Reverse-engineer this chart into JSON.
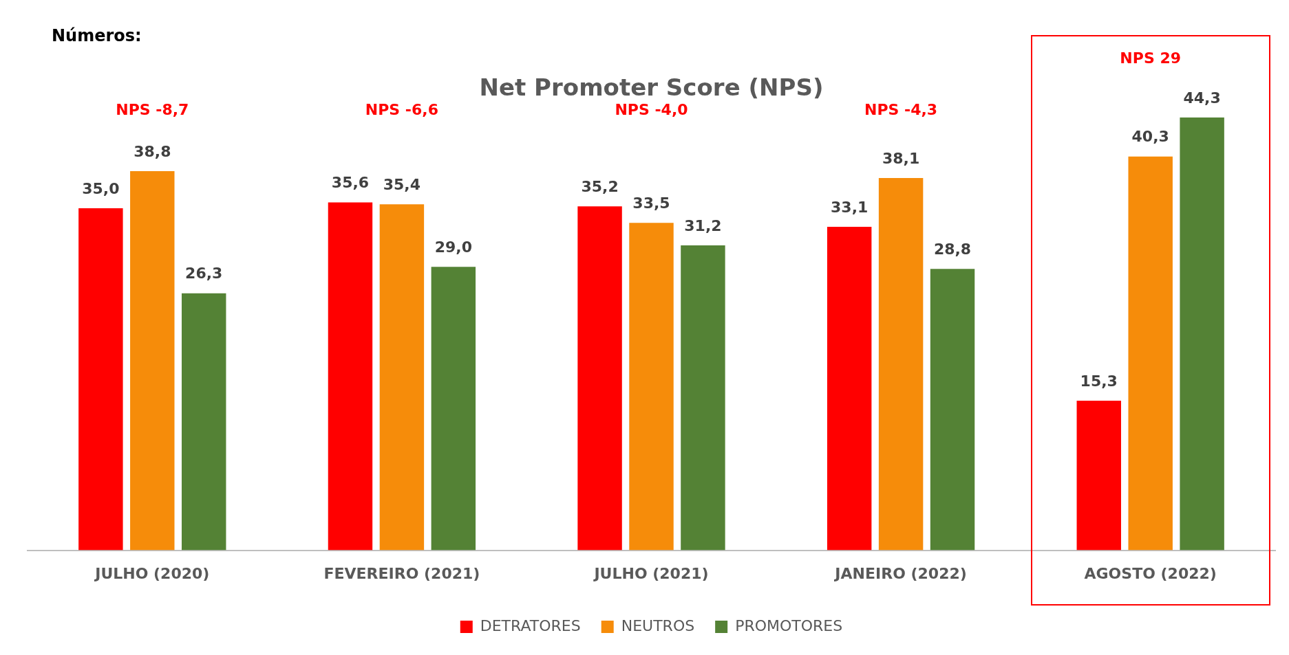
{
  "chart_data": {
    "type": "bar",
    "title": "Net Promoter Score (NPS)",
    "categories": [
      "JULHO (2020)",
      "FEVEREIRO (2021)",
      "JULHO (2021)",
      "JANEIRO (2022)",
      "AGOSTO (2022)"
    ],
    "series": [
      {
        "name": "DETRATORES",
        "color": "#ff0000",
        "values": [
          35.0,
          35.6,
          35.2,
          33.1,
          15.3
        ],
        "value_labels": [
          "35,0",
          "35,6",
          "35,2",
          "33,1",
          "15,3"
        ]
      },
      {
        "name": "NEUTROS",
        "color": "#f68c0a",
        "values": [
          38.8,
          35.4,
          33.5,
          38.1,
          40.3
        ],
        "value_labels": [
          "38,8",
          "35,4",
          "33,5",
          "38,1",
          "40,3"
        ]
      },
      {
        "name": "PROMOTORES",
        "color": "#548235",
        "values": [
          26.3,
          29.0,
          31.2,
          28.8,
          44.3
        ],
        "value_labels": [
          "26,3",
          "29,0",
          "31,2",
          "28,8",
          "44,3"
        ]
      }
    ],
    "annotations": [
      "Números:",
      "NPS -8,7",
      "NPS -6,6",
      "NPS -4,0",
      "NPS -4,3",
      "NPS 29"
    ],
    "legend": "bottom",
    "grid": false
  }
}
